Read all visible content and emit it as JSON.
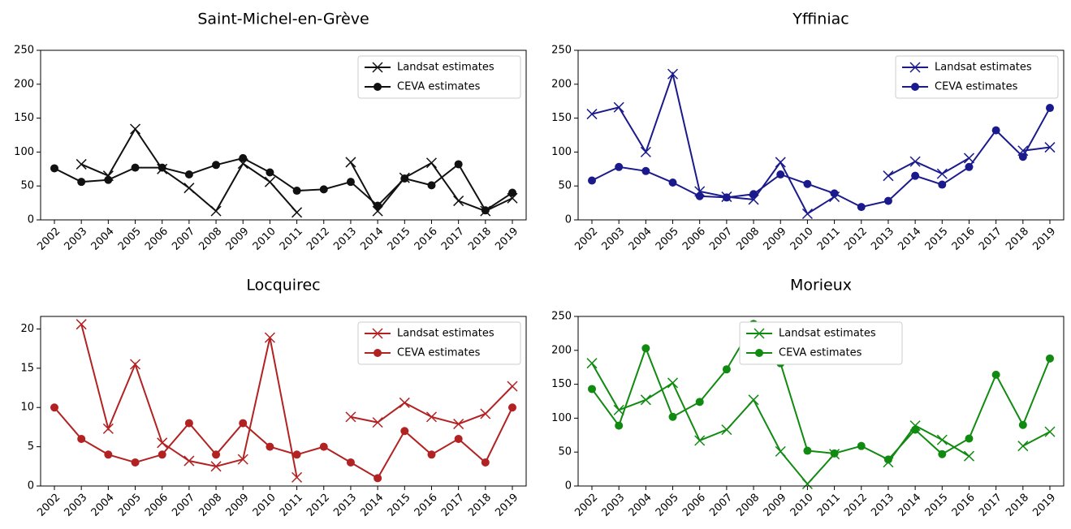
{
  "chart_data": [
    {
      "type": "line",
      "title": "Saint-Michel-en-Grève",
      "legend": "upper right",
      "categories": [
        "2002",
        "2003",
        "2004",
        "2005",
        "2006",
        "2007",
        "2008",
        "2009",
        "2010",
        "2011",
        "2012",
        "2013",
        "2014",
        "2015",
        "2016",
        "2017",
        "2018",
        "2019"
      ],
      "ylim": [
        0,
        250
      ],
      "yticks": [
        0,
        50,
        100,
        150,
        200,
        250
      ],
      "series": [
        {
          "name": "Landsat estimates",
          "color": "#111111",
          "marker": "x",
          "values": [
            null,
            82,
            65,
            134,
            75,
            47,
            13,
            83,
            56,
            11,
            null,
            85,
            13,
            62,
            84,
            28,
            13,
            32
          ]
        },
        {
          "name": "CEVA estimates",
          "color": "#111111",
          "marker": "o",
          "values": [
            76,
            56,
            59,
            77,
            77,
            67,
            81,
            91,
            70,
            43,
            45,
            56,
            21,
            61,
            51,
            82,
            14,
            40
          ]
        }
      ]
    },
    {
      "type": "line",
      "title": "Yffiniac",
      "legend": "upper right",
      "categories": [
        "2002",
        "2003",
        "2004",
        "2005",
        "2006",
        "2007",
        "2008",
        "2009",
        "2010",
        "2011",
        "2012",
        "2013",
        "2014",
        "2015",
        "2016",
        "2017",
        "2018",
        "2019"
      ],
      "ylim": [
        0,
        250
      ],
      "yticks": [
        0,
        50,
        100,
        150,
        200,
        250
      ],
      "series": [
        {
          "name": "Landsat estimates",
          "color": "#1a1a8c",
          "marker": "x",
          "values": [
            156,
            166,
            100,
            215,
            42,
            34,
            30,
            85,
            9,
            34,
            null,
            65,
            86,
            68,
            91,
            null,
            102,
            107
          ]
        },
        {
          "name": "CEVA estimates",
          "color": "#1a1a8c",
          "marker": "o",
          "values": [
            58,
            78,
            72,
            55,
            35,
            33,
            38,
            67,
            53,
            39,
            19,
            28,
            65,
            52,
            78,
            132,
            93,
            165
          ]
        }
      ]
    },
    {
      "type": "line",
      "title": "Locquirec",
      "legend": "upper right",
      "categories": [
        "2002",
        "2003",
        "2004",
        "2005",
        "2006",
        "2007",
        "2008",
        "2009",
        "2010",
        "2011",
        "2012",
        "2013",
        "2014",
        "2015",
        "2016",
        "2017",
        "2018",
        "2019"
      ],
      "ylim": [
        0,
        21.6
      ],
      "yticks": [
        0,
        5,
        10,
        15,
        20
      ],
      "series": [
        {
          "name": "Landsat estimates",
          "color": "#b22222",
          "marker": "x",
          "values": [
            null,
            20.6,
            7.3,
            15.5,
            5.5,
            3.2,
            2.5,
            3.4,
            18.9,
            1.1,
            null,
            8.8,
            8.1,
            10.6,
            8.8,
            7.9,
            9.2,
            12.7
          ]
        },
        {
          "name": "CEVA estimates",
          "color": "#b22222",
          "marker": "o",
          "values": [
            10,
            6,
            4,
            3,
            4,
            8,
            4,
            8,
            5,
            4,
            5,
            3,
            1,
            7,
            4,
            6,
            3,
            10
          ]
        }
      ]
    },
    {
      "type": "line",
      "title": "Morieux",
      "legend": "upper center",
      "categories": [
        "2002",
        "2003",
        "2004",
        "2005",
        "2006",
        "2007",
        "2008",
        "2009",
        "2010",
        "2011",
        "2012",
        "2013",
        "2014",
        "2015",
        "2016",
        "2017",
        "2018",
        "2019"
      ],
      "ylim": [
        0,
        250
      ],
      "yticks": [
        0,
        50,
        100,
        150,
        200,
        250
      ],
      "series": [
        {
          "name": "Landsat estimates",
          "color": "#118a11",
          "marker": "x",
          "values": [
            181,
            112,
            127,
            152,
            67,
            83,
            127,
            51,
            3,
            47,
            null,
            35,
            89,
            68,
            44,
            null,
            59,
            80
          ]
        },
        {
          "name": "CEVA estimates",
          "color": "#118a11",
          "marker": "o",
          "values": [
            143,
            89,
            203,
            102,
            124,
            172,
            239,
            181,
            52,
            48,
            59,
            39,
            83,
            47,
            70,
            164,
            90,
            188
          ]
        }
      ]
    }
  ]
}
